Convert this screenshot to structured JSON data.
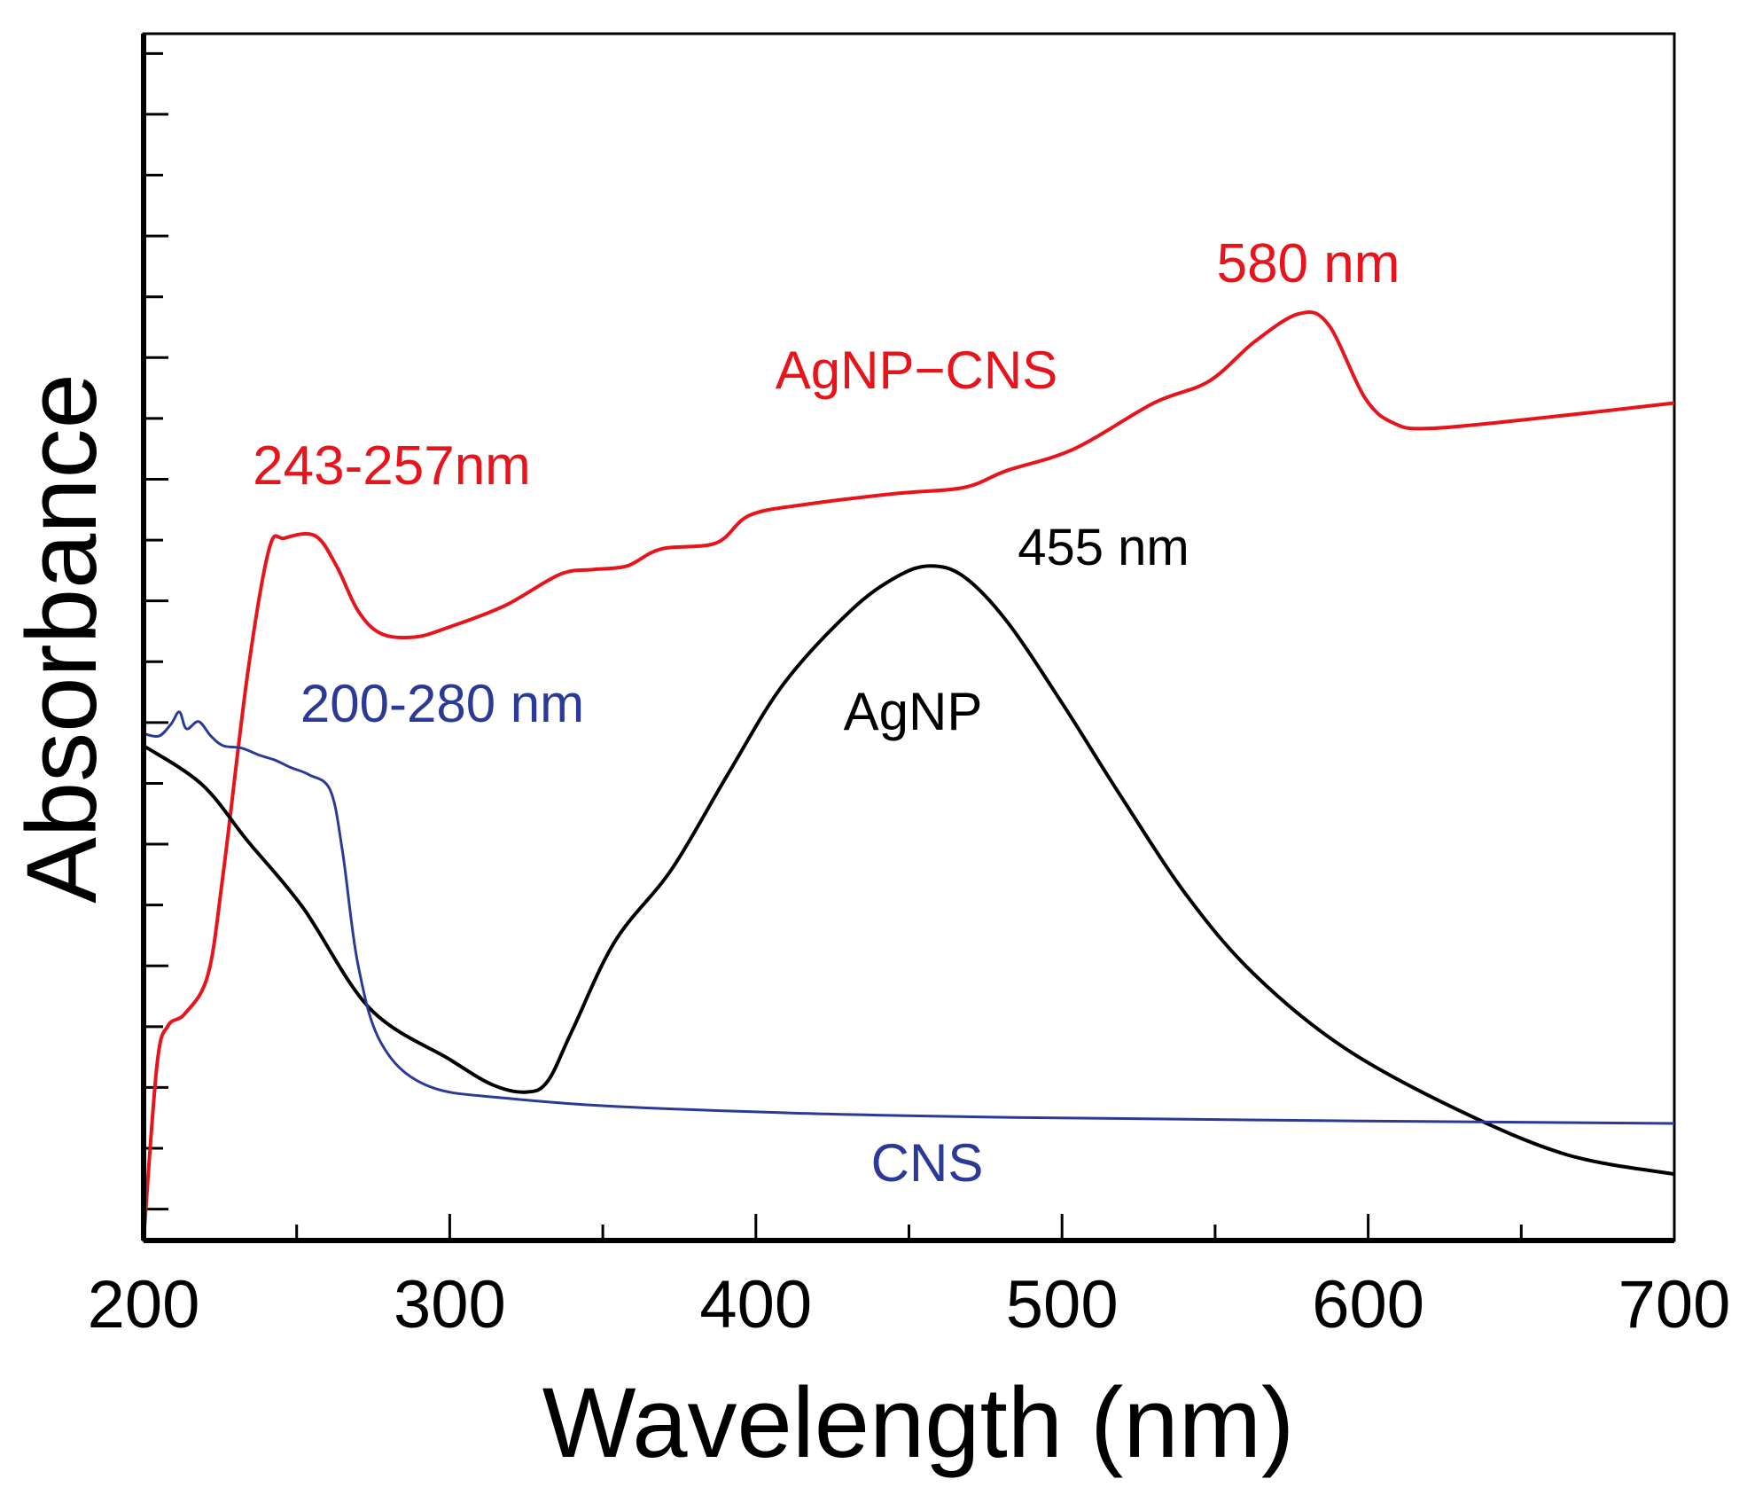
{
  "chart_data": {
    "type": "line",
    "title": "",
    "xlabel": "Wavelength (nm)",
    "ylabel": "Absorbance",
    "xlim": [
      200,
      700
    ],
    "ylim": [
      0,
      1
    ],
    "y_units": "arbitrary (normalized), no tick labels",
    "xticks": [
      200,
      300,
      400,
      500,
      600,
      700
    ],
    "xtick_labels": [
      "200",
      "300",
      "400",
      "500",
      "600",
      "700"
    ],
    "grid": false,
    "legend": "none (direct labels)",
    "series": [
      {
        "name": "AgNP-CNS",
        "color": "#e8141c",
        "x": [
          200,
          204.4,
          208,
          213.5,
          221,
          226,
          234,
          241,
          246,
          256,
          263,
          270,
          277.5,
          288.5,
          299.5,
          318,
          336,
          347,
          358,
          369,
          387,
          398,
          416.5,
          446,
          468,
          482,
          504,
          530,
          548,
          563,
          577.5,
          587,
          599,
          608.6,
          621,
          658,
          700
        ],
        "y": [
          0,
          0.146,
          0.178,
          0.188,
          0.22,
          0.304,
          0.47,
          0.573,
          0.582,
          0.584,
          0.559,
          0.522,
          0.503,
          0.5,
          0.508,
          0.526,
          0.552,
          0.556,
          0.559,
          0.573,
          0.578,
          0.601,
          0.61,
          0.619,
          0.624,
          0.638,
          0.656,
          0.694,
          0.712,
          0.745,
          0.768,
          0.759,
          0.698,
          0.677,
          0.673,
          0.682,
          0.694
        ]
      },
      {
        "name": "AgNP",
        "color": "#000000",
        "x": [
          200,
          219,
          234,
          252,
          274,
          300,
          314,
          325,
          332,
          340,
          354,
          372.6,
          391,
          409,
          431,
          446,
          457,
          468,
          482,
          500.6,
          519,
          541,
          563,
          592,
          628.7,
          665,
          700
        ],
        "y": [
          0.41,
          0.378,
          0.331,
          0.276,
          0.192,
          0.15,
          0.129,
          0.123,
          0.132,
          0.174,
          0.248,
          0.308,
          0.387,
          0.461,
          0.522,
          0.55,
          0.559,
          0.55,
          0.513,
          0.443,
          0.369,
          0.285,
          0.22,
          0.16,
          0.109,
          0.071,
          0.055
        ]
      },
      {
        "name": "CNS",
        "color": "#2b3a97",
        "x": [
          200,
          205,
          209,
          211.7,
          214,
          218,
          222,
          226,
          232,
          238,
          243,
          248,
          254,
          261,
          265,
          270,
          277.5,
          292,
          318,
          372.6,
          482,
          700
        ],
        "y": [
          0.42,
          0.418,
          0.428,
          0.438,
          0.424,
          0.43,
          0.418,
          0.41,
          0.408,
          0.402,
          0.398,
          0.392,
          0.386,
          0.373,
          0.322,
          0.229,
          0.164,
          0.129,
          0.118,
          0.109,
          0.102,
          0.097
        ]
      }
    ],
    "annotations": [
      {
        "id": "a580",
        "text": "580 nm",
        "color": "#e8141c"
      },
      {
        "id": "aAgNPCNS",
        "text": "AgNP−CNS",
        "color": "#e8141c"
      },
      {
        "id": "a243",
        "text": "243-257nm",
        "color": "#e8141c"
      },
      {
        "id": "a455",
        "text": "455 nm",
        "color": "#000000"
      },
      {
        "id": "a200",
        "text": "200-280 nm",
        "color": "#2b3a97"
      },
      {
        "id": "aAgNP",
        "text": "AgNP",
        "color": "#000000"
      },
      {
        "id": "aCNS",
        "text": "CNS",
        "color": "#2b3a97"
      }
    ]
  }
}
